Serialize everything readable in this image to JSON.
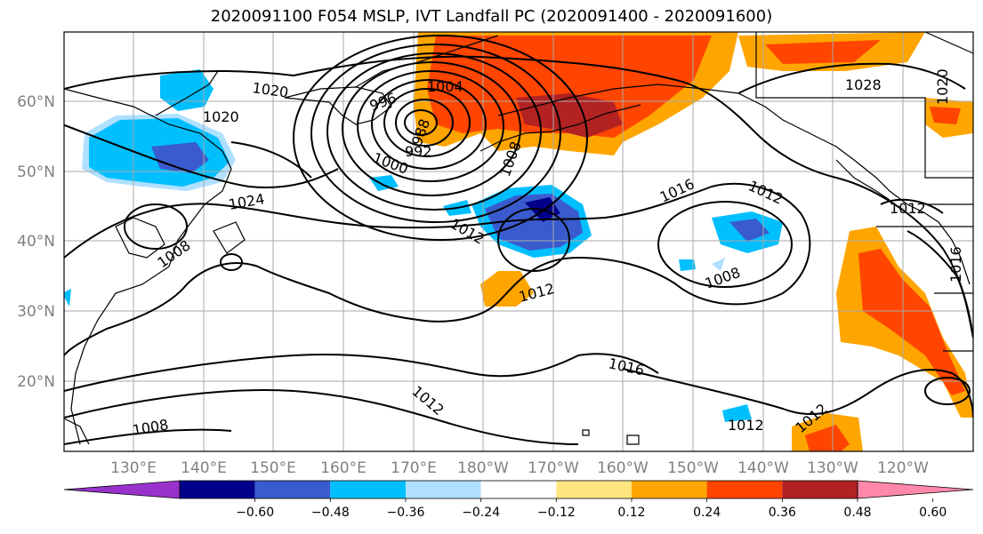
{
  "title": "2020091100 F054 MSLP, IVT Landfall PC (2020091400 - 2020091600)",
  "map": {
    "lat_labels": [
      "60°N",
      "50°N",
      "40°N",
      "30°N",
      "20°N"
    ],
    "lon_labels": [
      "130°E",
      "140°E",
      "150°E",
      "160°E",
      "170°E",
      "180°W",
      "170°W",
      "160°W",
      "150°W",
      "140°W",
      "130°W",
      "120°W"
    ],
    "isobar_labels": [
      {
        "text": "1020",
        "area": "north-west Pacific near Kamchatka"
      },
      {
        "text": "1020",
        "area": "Okhotsk"
      },
      {
        "text": "996",
        "area": "low centre Bering Sea"
      },
      {
        "text": "1004",
        "area": "Bering Sea"
      },
      {
        "text": "992",
        "area": "low centre"
      },
      {
        "text": "988",
        "area": "low centre"
      },
      {
        "text": "1000",
        "area": "south of low"
      },
      {
        "text": "1008",
        "area": "Gulf of Alaska"
      },
      {
        "text": "1024",
        "area": "east of Japan"
      },
      {
        "text": "1008",
        "area": "Japan"
      },
      {
        "text": "1012",
        "area": "central Pacific"
      },
      {
        "text": "1012",
        "area": "south of cut-off low"
      },
      {
        "text": "1016",
        "area": "north-east Pacific"
      },
      {
        "text": "1012",
        "area": "north-east Pacific"
      },
      {
        "text": "1008",
        "area": "north-east Pacific low"
      },
      {
        "text": "1016",
        "area": "subtropical Pacific"
      },
      {
        "text": "1012",
        "area": "subtropical Pacific"
      },
      {
        "text": "1008",
        "area": "south-west"
      },
      {
        "text": "1012",
        "area": "south of Hawaii"
      },
      {
        "text": "1012",
        "area": "off Baja California"
      },
      {
        "text": "1028",
        "area": "Yukon"
      },
      {
        "text": "1020",
        "area": "north-west Canada"
      },
      {
        "text": "1012",
        "area": "Pacific Northwest"
      },
      {
        "text": "1016",
        "area": "US West"
      }
    ]
  },
  "colorbar": {
    "ticks": [
      "−0.60",
      "−0.48",
      "−0.36",
      "−0.24",
      "−0.12",
      "0.12",
      "0.24",
      "0.36",
      "0.48",
      "0.60"
    ],
    "colors": [
      "#9932cc",
      "#00008b",
      "#3a5bcd",
      "#00bfff",
      "#b0e0ff",
      "#ffffff",
      "#ffe680",
      "#ffa500",
      "#ff4500",
      "#b22222",
      "#ff88aa"
    ]
  }
}
